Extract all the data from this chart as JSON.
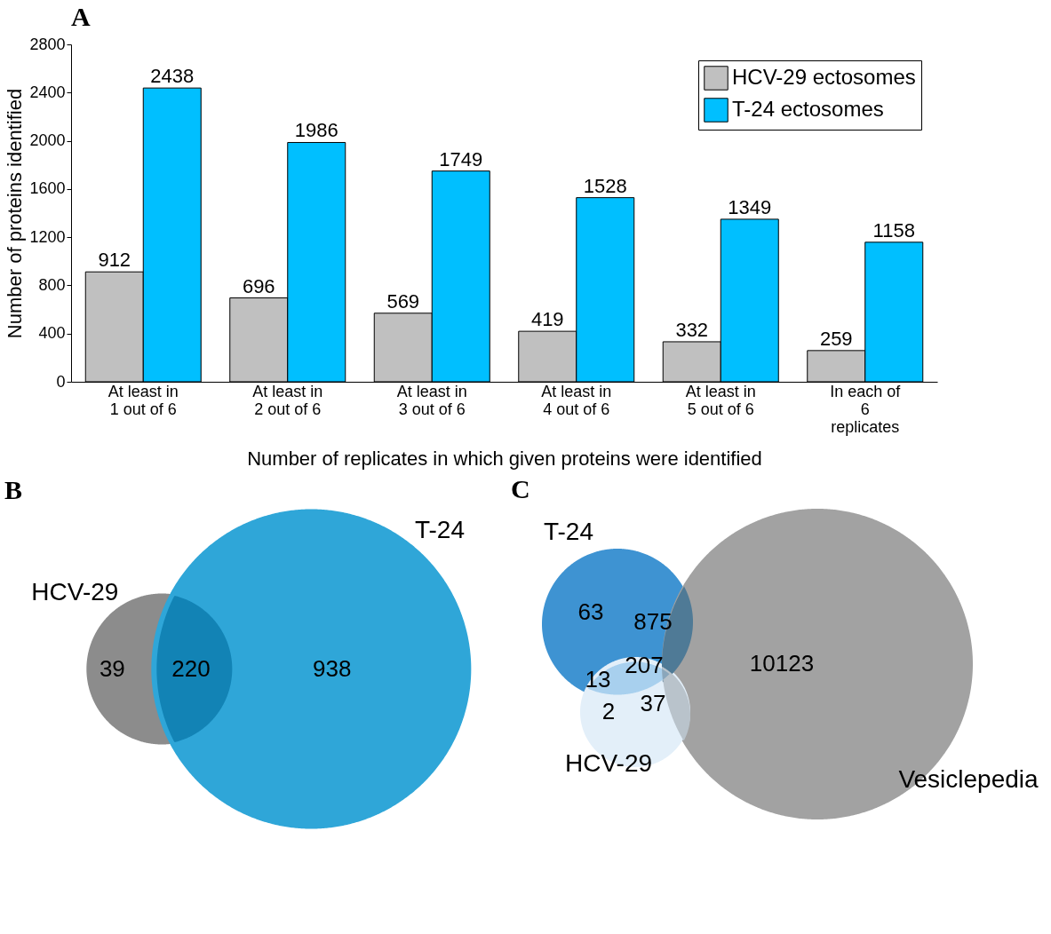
{
  "chart_data": [
    {
      "type": "bar",
      "title": "A",
      "categories": [
        "At least in\n1 out of 6",
        "At least in\n2 out of 6",
        "At least in\n3 out of 6",
        "At least in\n4 out of 6",
        "At least in\n5 out of 6",
        "In each of\n6\nreplicates"
      ],
      "series": [
        {
          "name": "HCV-29 ectosomes",
          "color": "#c0c0c0",
          "values": [
            912,
            696,
            569,
            419,
            332,
            259
          ]
        },
        {
          "name": "T-24 ectosomes",
          "color": "#00bfff",
          "values": [
            2438,
            1986,
            1749,
            1528,
            1349,
            1158
          ]
        }
      ],
      "xlabel": "Number of replicates in which given proteins were identified",
      "ylabel": "Number of proteins identified",
      "ylim": [
        0,
        2800
      ],
      "yticks": [
        0,
        400,
        800,
        1200,
        1600,
        2000,
        2400,
        2800
      ],
      "data_labels": true,
      "legend": "top right",
      "grid": false
    },
    {
      "type": "other",
      "title": "B",
      "categories": [
        null,
        null,
        null
      ],
      "values": [
        39,
        220,
        938
      ],
      "colors": [
        "#8c8c8c",
        "#1283b5",
        "#2fa6d8"
      ],
      "annotations": [
        "HCV-29",
        "T-24"
      ],
      "data_labels": true
    },
    {
      "type": "other",
      "title": "C",
      "categories": [
        null,
        null,
        null,
        null,
        null,
        null,
        null
      ],
      "values": [
        63,
        875,
        13,
        207,
        10123,
        2,
        37
      ],
      "colors": [
        "#3e93d2",
        "#4f7a96",
        "#a8d0ee",
        "#8aa6bb",
        "#a2a2a2",
        "#e3eff9",
        "#b9c3cb"
      ],
      "annotations": [
        "T-24",
        "HCV-29",
        "Vesiclepedia"
      ],
      "data_labels": true
    }
  ]
}
